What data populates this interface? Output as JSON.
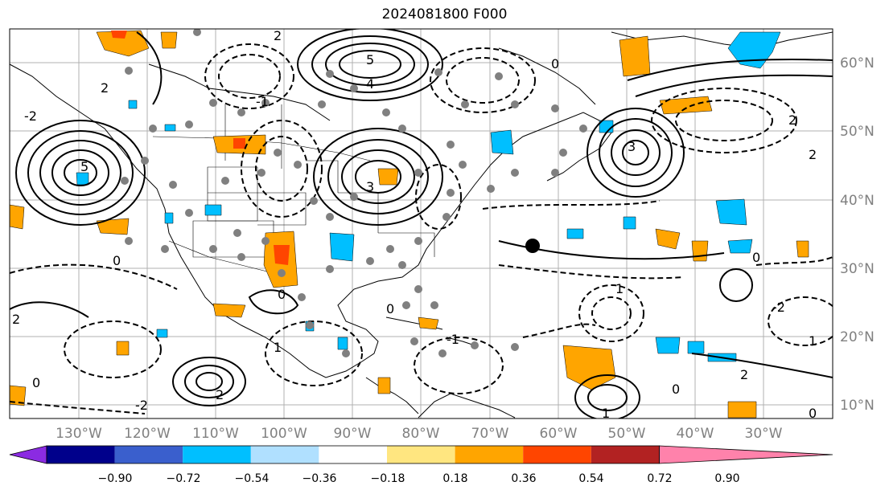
{
  "figure": {
    "title": "2024081800 F000"
  },
  "map": {
    "lat_labels": [
      "60°N",
      "50°N",
      "40°N",
      "30°N",
      "20°N",
      "10°N"
    ],
    "lon_labels": [
      "130°W",
      "120°W",
      "110°W",
      "100°W",
      "90°W",
      "80°W",
      "70°W",
      "60°W",
      "50°W",
      "40°W",
      "30°W"
    ],
    "contour_labels": [
      "5",
      "5",
      "4",
      "3",
      "3",
      "2",
      "2",
      "2",
      "2",
      "2",
      "2",
      "2",
      "1",
      "1",
      "1",
      "1",
      "0",
      "0",
      "0",
      "0",
      "0",
      "0",
      "0",
      "0",
      "-1",
      "-1",
      "-1",
      "-2",
      "-2",
      "-2",
      "-2"
    ]
  },
  "colorbar": {
    "ticks": [
      "−0.90",
      "−0.72",
      "−0.54",
      "−0.36",
      "−0.18",
      "0.18",
      "0.36",
      "0.54",
      "0.72",
      "0.90"
    ],
    "colors": [
      "#8b2be2",
      "#00008b",
      "#3a5fcd",
      "#00bfff",
      "#b0e0ff",
      "#ffffff",
      "#ffe680",
      "#ffa500",
      "#ff4500",
      "#b22222",
      "#ff82ab"
    ]
  }
}
